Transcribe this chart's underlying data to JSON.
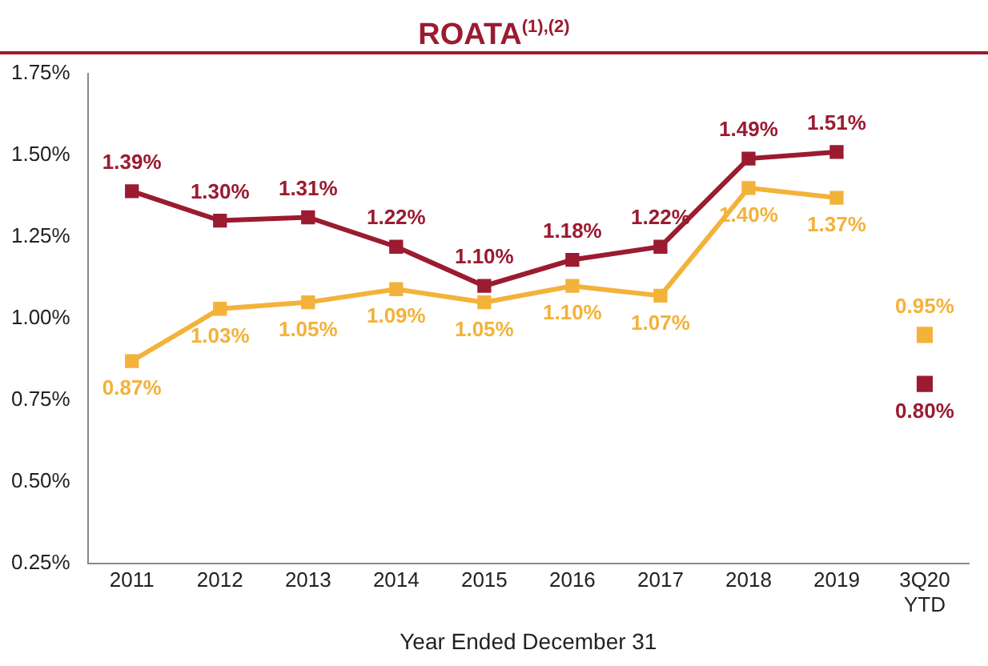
{
  "chart_data": {
    "type": "line",
    "title": "ROATA$^{(1),(2)}$",
    "xlabel": "Year Ended December 31",
    "categories": [
      "2011",
      "2012",
      "2013",
      "2014",
      "2015",
      "2016",
      "2017",
      "2018",
      "2019",
      "3Q20 YTD"
    ],
    "ylim": [
      0.25,
      1.75
    ],
    "yticks": [
      {
        "value": 0.25,
        "label": "0.25%"
      },
      {
        "value": 0.5,
        "label": "0.50%"
      },
      {
        "value": 0.75,
        "label": "0.75%"
      },
      {
        "value": 1,
        "label": "1.00%"
      },
      {
        "value": 1.25,
        "label": "1.25%"
      },
      {
        "value": 1.5,
        "label": "1.50%"
      },
      {
        "value": 1.75,
        "label": "1.75%"
      }
    ],
    "grid": false,
    "legend": false,
    "marker": "square",
    "line_style": "solid",
    "series": [
      {
        "color": "#9b1b30",
        "values": [
          1.39,
          1.3,
          1.31,
          1.22,
          1.1,
          1.18,
          1.22,
          1.49,
          1.51,
          null
        ],
        "value_labels": [
          "1.39%",
          "1.30%",
          "1.31%",
          "1.22%",
          "1.10%",
          "1.18%",
          "1.22%",
          "1.49%",
          "1.51%",
          null
        ]
      },
      {
        "color": "#f3b23a",
        "values": [
          0.87,
          1.03,
          1.05,
          1.09,
          1.05,
          1.1,
          1.07,
          1.4,
          1.37,
          null
        ],
        "value_labels": [
          "0.87%",
          "1.03%",
          "1.05%",
          "1.09%",
          "1.05%",
          "1.10%",
          "1.07%",
          "1.40%",
          "1.37%",
          null
        ]
      },
      {
        "type": "scatter",
        "color": "#9b1b30",
        "x": [
          "3Q20 YTD"
        ],
        "values": [
          0.8
        ],
        "value_labels": [
          "0.80%"
        ]
      },
      {
        "type": "scatter",
        "color": "#f3b23a",
        "x": [
          "3Q20 YTD"
        ],
        "values": [
          0.95
        ],
        "value_labels": [
          "0.95%"
        ]
      }
    ]
  }
}
